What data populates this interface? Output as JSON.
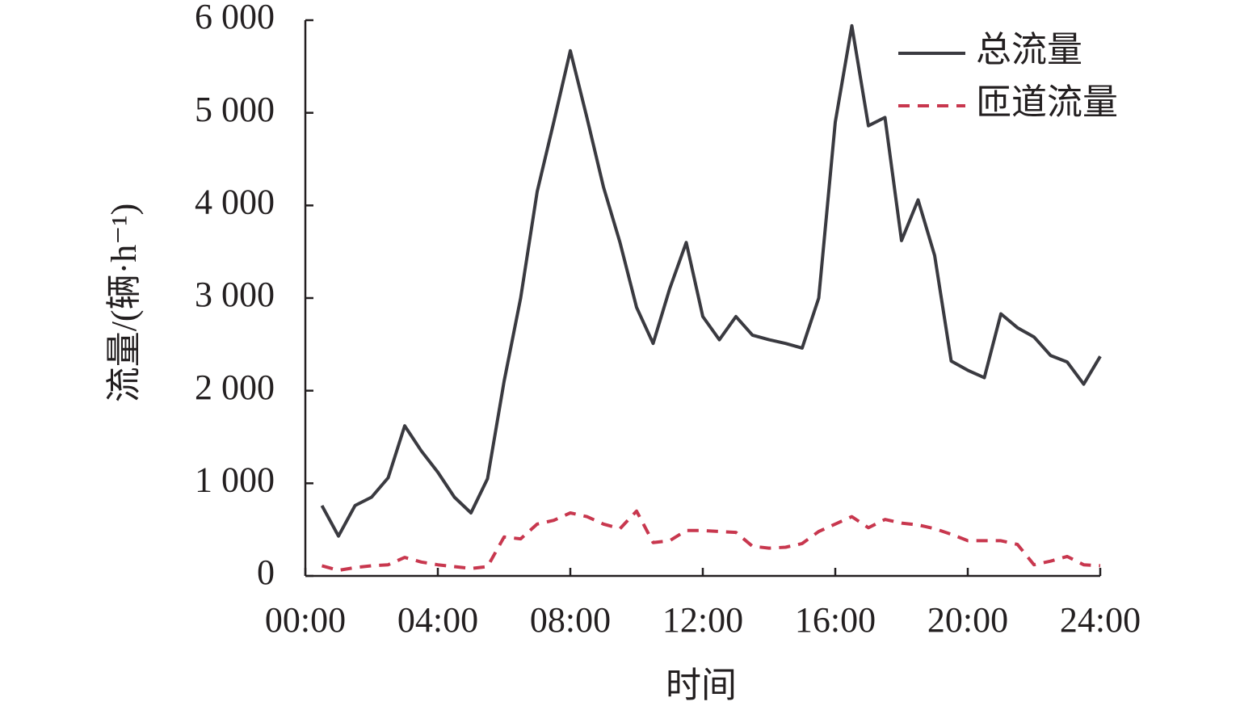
{
  "chart_data": {
    "type": "line",
    "x_label": "时间",
    "y_label": "流量/(辆·h⁻¹)",
    "x": [
      0.5,
      1,
      1.5,
      2,
      2.5,
      3,
      3.5,
      4,
      4.5,
      5,
      5.5,
      6,
      6.5,
      7,
      7.5,
      8,
      8.5,
      9,
      9.5,
      10,
      10.5,
      11,
      11.5,
      12,
      12.5,
      13,
      13.5,
      14,
      14.5,
      15,
      15.5,
      16,
      16.5,
      17,
      17.5,
      18,
      18.5,
      19,
      19.5,
      20,
      20.5,
      21,
      21.5,
      22,
      22.5,
      23,
      23.5,
      24
    ],
    "series": [
      {
        "name": "总流量",
        "color": "#3a3a40",
        "dash": false,
        "values": [
          760,
          430,
          760,
          850,
          1060,
          1620,
          1350,
          1120,
          850,
          680,
          1050,
          2100,
          3000,
          4150,
          4900,
          5670,
          4950,
          4200,
          3600,
          2900,
          2510,
          3100,
          3600,
          2800,
          2550,
          2800,
          2600,
          2550,
          2510,
          2460,
          3000,
          4900,
          5940,
          4860,
          4950,
          3620,
          4060,
          3460,
          2320,
          2220,
          2140,
          2830,
          2680,
          2580,
          2380,
          2310,
          2070,
          2370
        ]
      },
      {
        "name": "匝道流量",
        "color": "#c8374e",
        "dash": true,
        "values": [
          110,
          60,
          90,
          110,
          120,
          200,
          150,
          120,
          100,
          80,
          100,
          420,
          400,
          560,
          600,
          680,
          640,
          560,
          510,
          700,
          360,
          380,
          490,
          490,
          480,
          470,
          320,
          300,
          310,
          350,
          480,
          560,
          640,
          520,
          610,
          570,
          550,
          510,
          450,
          380,
          380,
          380,
          340,
          120,
          160,
          210,
          120,
          110
        ]
      }
    ],
    "xlim": [
      0,
      24
    ],
    "xticks": [
      {
        "value": 0,
        "label": "00:00"
      },
      {
        "value": 4,
        "label": "04:00"
      },
      {
        "value": 8,
        "label": "08:00"
      },
      {
        "value": 12,
        "label": "12:00"
      },
      {
        "value": 16,
        "label": "16:00"
      },
      {
        "value": 20,
        "label": "20:00"
      },
      {
        "value": 24,
        "label": "24:00"
      }
    ],
    "ylim": [
      0,
      6000
    ],
    "yticks": [
      0,
      {
        "value": 1000,
        "label": "1 000"
      },
      {
        "value": 2000,
        "label": "2 000"
      },
      {
        "value": 3000,
        "label": "3 000"
      },
      {
        "value": 4000,
        "label": "4 000"
      },
      {
        "value": 5000,
        "label": "5 000"
      },
      {
        "value": 6000,
        "label": "6 000"
      }
    ],
    "legend": "upper-right",
    "grid": false
  }
}
